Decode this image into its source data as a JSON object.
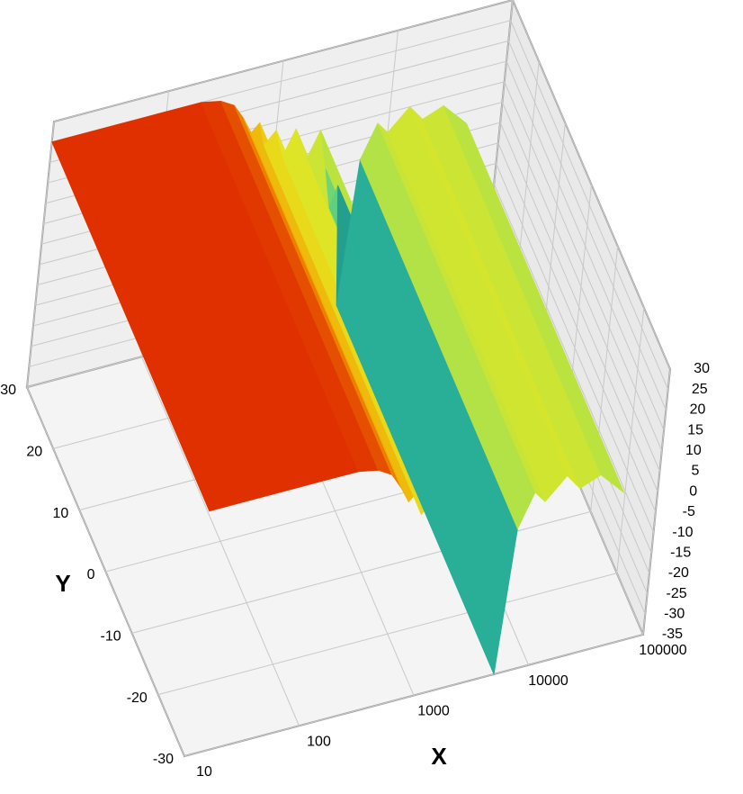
{
  "chart_data": {
    "type": "surface3d",
    "xlabel": "X",
    "ylabel": "Y",
    "xlog": true,
    "xlim": [
      10,
      100000
    ],
    "xticks": [
      10,
      100,
      1000,
      10000,
      100000
    ],
    "ylim": [
      -30,
      30
    ],
    "yticks": [
      -30,
      -20,
      -10,
      0,
      10,
      20,
      30
    ],
    "zlim": [
      -35,
      30
    ],
    "zticks": [
      30,
      25,
      20,
      15,
      10,
      5,
      0,
      -5,
      -10,
      -15,
      -20,
      -25,
      -30,
      -35
    ],
    "grid": true,
    "colorscale": [
      [
        -35,
        "#003a5a"
      ],
      [
        -15,
        "#2fbfa0"
      ],
      [
        0,
        "#8fe060"
      ],
      [
        10,
        "#e6e620"
      ],
      [
        18,
        "#f2a000"
      ],
      [
        25,
        "#e03000"
      ]
    ],
    "surface": {
      "x": [
        10,
        50,
        100,
        200,
        300,
        400,
        500,
        600,
        700,
        800,
        1000,
        1200,
        1500,
        2000,
        2500,
        3000,
        3500,
        4000,
        5000,
        6000,
        8000,
        10000,
        15000,
        20000,
        30000,
        50000
      ],
      "z": [
        25,
        25,
        25,
        25,
        24,
        22,
        18,
        14,
        16,
        10,
        13,
        6,
        12,
        4,
        10,
        0,
        -10,
        -5,
        -35,
        0,
        8,
        5,
        10,
        6,
        8,
        2
      ]
    }
  }
}
